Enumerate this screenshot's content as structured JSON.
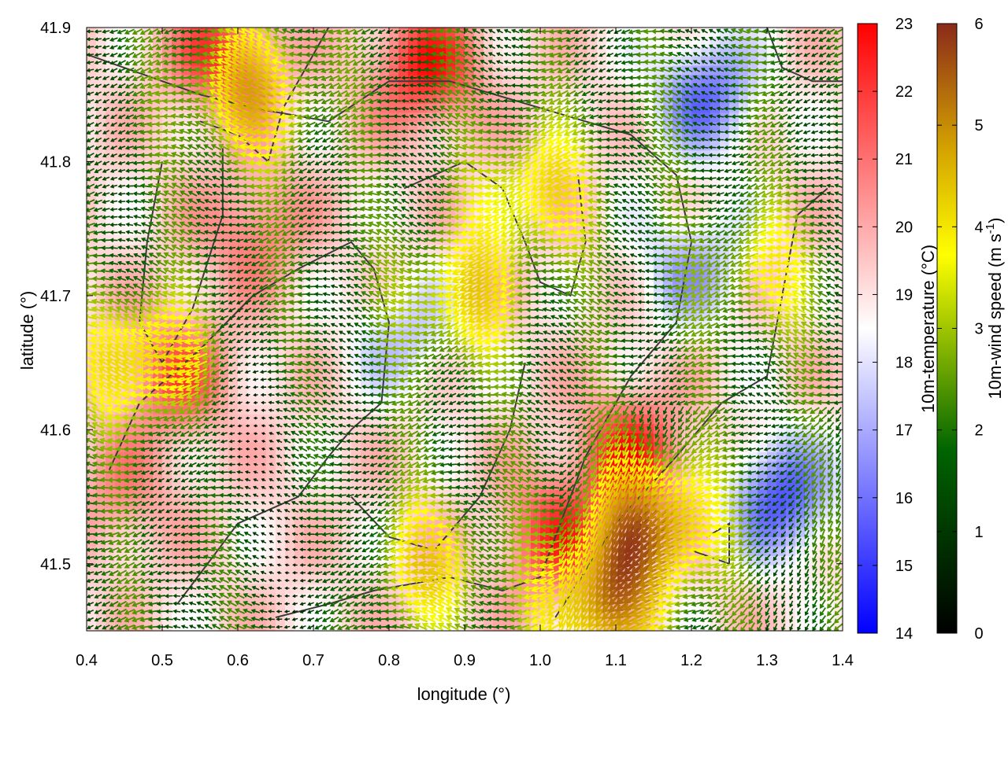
{
  "chart_data": {
    "type": "heatmap",
    "xlabel": "longitude (°)",
    "ylabel": "latitude (°)",
    "xlim": [
      0.4,
      1.4
    ],
    "ylim": [
      41.45,
      41.9
    ],
    "xticks": [
      0.4,
      0.5,
      0.6,
      0.7,
      0.8,
      0.9,
      1.0,
      1.1,
      1.2,
      1.3,
      1.4
    ],
    "xtick_labels": [
      "0.4",
      "0.5",
      "0.6",
      "0.7",
      "0.8",
      "0.9",
      "1.0",
      "1.1",
      "1.2",
      "1.3",
      "1.4"
    ],
    "yticks": [
      41.5,
      41.6,
      41.7,
      41.8,
      41.9
    ],
    "ytick_labels": [
      "41.5",
      "41.6",
      "41.7",
      "41.8",
      "41.9"
    ],
    "background_field": {
      "name": "10m-temperature (°C)",
      "range": [
        14,
        23
      ],
      "colors": [
        "#0000ff",
        "#ffffff",
        "#ff0000"
      ],
      "ticks": [
        "14",
        "15",
        "16",
        "17",
        "18",
        "19",
        "20",
        "21",
        "22",
        "23"
      ],
      "features": [
        {
          "kind": "warm",
          "lon": 0.58,
          "lat": 41.88,
          "temp": 22
        },
        {
          "kind": "warm",
          "lon": 0.85,
          "lat": 41.87,
          "temp": 22.5
        },
        {
          "kind": "warm",
          "lon": 0.52,
          "lat": 41.64,
          "temp": 21.5
        },
        {
          "kind": "warm",
          "lon": 0.62,
          "lat": 41.75,
          "temp": 21
        },
        {
          "kind": "warm",
          "lon": 1.12,
          "lat": 41.58,
          "temp": 22.5
        },
        {
          "kind": "warm",
          "lon": 1.02,
          "lat": 41.52,
          "temp": 22
        },
        {
          "kind": "warm",
          "lon": 0.45,
          "lat": 41.55,
          "temp": 20.5
        },
        {
          "kind": "cool",
          "lon": 1.22,
          "lat": 41.85,
          "temp": 16
        },
        {
          "kind": "cool",
          "lon": 1.32,
          "lat": 41.55,
          "temp": 15.5
        },
        {
          "kind": "cool",
          "lon": 0.82,
          "lat": 41.67,
          "temp": 17.5
        },
        {
          "kind": "cool",
          "lon": 1.2,
          "lat": 41.72,
          "temp": 17
        }
      ]
    },
    "vector_field": {
      "name": "10m-wind speed (m s-1)",
      "unit_prefix": "10m-wind speed (m s",
      "unit_exponent": "-1",
      "unit_suffix": ")",
      "range": [
        0,
        6
      ],
      "colors": [
        "#000000",
        "#006400",
        "#ffff00",
        "#d2a000",
        "#8b2a1a"
      ],
      "ticks": [
        "0",
        "1",
        "2",
        "3",
        "4",
        "5",
        "6"
      ],
      "prevailing_direction_deg": 180,
      "features": [
        {
          "lon": 0.9,
          "lat": 41.7,
          "speed": 3.5
        },
        {
          "lon": 0.62,
          "lat": 41.85,
          "speed": 4
        },
        {
          "lon": 1.15,
          "lat": 41.53,
          "speed": 5
        },
        {
          "lon": 1.08,
          "lat": 41.47,
          "speed": 4.5
        },
        {
          "lon": 0.48,
          "lat": 41.65,
          "speed": 4
        },
        {
          "lon": 1.0,
          "lat": 41.78,
          "speed": 3.5
        },
        {
          "lon": 0.85,
          "lat": 41.5,
          "speed": 3.5
        },
        {
          "lon": 1.3,
          "lat": 41.72,
          "speed": 3
        },
        {
          "lon": 0.6,
          "lat": 41.6,
          "speed": 0.5
        },
        {
          "lon": 0.7,
          "lat": 41.5,
          "speed": 0.6
        }
      ]
    },
    "boundary_lines": [
      [
        [
          0.4,
          41.88
        ],
        [
          0.5,
          41.86
        ],
        [
          0.55,
          41.85
        ],
        [
          0.62,
          41.84
        ],
        [
          0.72,
          41.83
        ],
        [
          0.8,
          41.86
        ],
        [
          0.88,
          41.86
        ],
        [
          1.0,
          41.84
        ],
        [
          1.12,
          41.82
        ],
        [
          1.18,
          41.79
        ],
        [
          1.2,
          41.74
        ],
        [
          1.18,
          41.68
        ],
        [
          1.12,
          41.64
        ],
        [
          1.06,
          41.58
        ],
        [
          1.02,
          41.52
        ],
        [
          1.0,
          41.49
        ],
        [
          0.95,
          41.48
        ],
        [
          0.88,
          41.49
        ],
        [
          0.78,
          41.48
        ],
        [
          0.72,
          41.47
        ],
        [
          0.65,
          41.46
        ]
      ],
      [
        [
          0.5,
          41.8
        ],
        [
          0.48,
          41.74
        ],
        [
          0.47,
          41.68
        ],
        [
          0.5,
          41.65
        ],
        [
          0.54,
          41.69
        ],
        [
          0.58,
          41.76
        ],
        [
          0.58,
          41.81
        ]
      ],
      [
        [
          0.43,
          41.57
        ],
        [
          0.47,
          41.62
        ],
        [
          0.55,
          41.66
        ],
        [
          0.62,
          41.7
        ],
        [
          0.68,
          41.72
        ],
        [
          0.75,
          41.74
        ],
        [
          0.78,
          41.72
        ],
        [
          0.8,
          41.68
        ],
        [
          0.79,
          41.62
        ],
        [
          0.75,
          41.6
        ],
        [
          0.72,
          41.58
        ],
        [
          0.68,
          41.55
        ],
        [
          0.6,
          41.53
        ],
        [
          0.52,
          41.47
        ]
      ],
      [
        [
          0.75,
          41.55
        ],
        [
          0.8,
          41.52
        ],
        [
          0.86,
          41.51
        ],
        [
          0.92,
          41.55
        ],
        [
          0.96,
          41.6
        ],
        [
          0.98,
          41.65
        ]
      ],
      [
        [
          1.02,
          41.46
        ],
        [
          1.1,
          41.53
        ],
        [
          1.18,
          41.58
        ],
        [
          1.24,
          41.62
        ],
        [
          1.3,
          41.64
        ],
        [
          1.32,
          41.7
        ],
        [
          1.34,
          41.76
        ],
        [
          1.38,
          41.78
        ]
      ],
      [
        [
          0.82,
          41.78
        ],
        [
          0.9,
          41.8
        ],
        [
          0.95,
          41.78
        ],
        [
          0.98,
          41.74
        ],
        [
          1.0,
          41.71
        ],
        [
          1.04,
          41.7
        ],
        [
          1.06,
          41.74
        ],
        [
          1.05,
          41.79
        ]
      ],
      [
        [
          1.3,
          41.9
        ],
        [
          1.32,
          41.87
        ],
        [
          1.36,
          41.86
        ],
        [
          1.4,
          41.86
        ]
      ],
      [
        [
          1.2,
          41.51
        ],
        [
          1.25,
          41.5
        ],
        [
          1.25,
          41.53
        ],
        [
          1.22,
          41.52
        ]
      ],
      [
        [
          0.55,
          41.83
        ],
        [
          0.6,
          41.82
        ],
        [
          0.64,
          41.8
        ],
        [
          0.66,
          41.84
        ],
        [
          0.7,
          41.88
        ],
        [
          0.72,
          41.9
        ]
      ]
    ]
  }
}
